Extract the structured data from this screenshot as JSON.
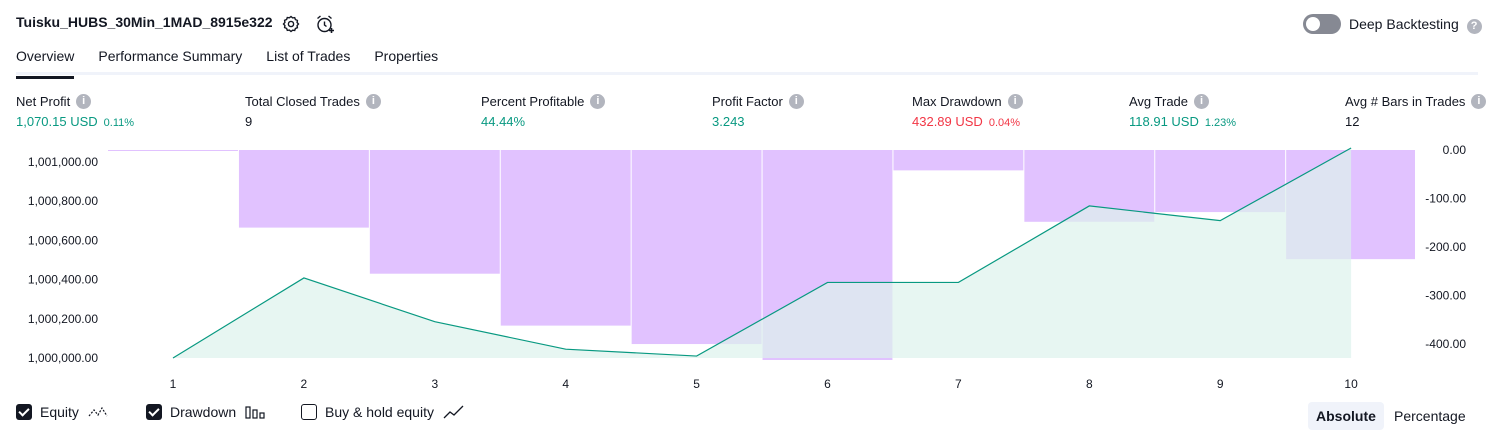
{
  "header": {
    "strategy_title": "Tuisku_HUBS_30Min_1MAD_8915e322",
    "deep_backtesting_label": "Deep Backtesting",
    "deep_backtesting_enabled": false
  },
  "tabs": [
    {
      "label": "Overview",
      "active": true
    },
    {
      "label": "Performance Summary",
      "active": false
    },
    {
      "label": "List of Trades",
      "active": false
    },
    {
      "label": "Properties",
      "active": false
    }
  ],
  "metrics": [
    {
      "label": "Net Profit",
      "value": "1,070.15 USD",
      "pct": "0.11%",
      "tone": "green"
    },
    {
      "label": "Total Closed Trades",
      "value": "9",
      "pct": "",
      "tone": "dark"
    },
    {
      "label": "Percent Profitable",
      "value": "44.44%",
      "pct": "",
      "tone": "green"
    },
    {
      "label": "Profit Factor",
      "value": "3.243",
      "pct": "",
      "tone": "green"
    },
    {
      "label": "Max Drawdown",
      "value": "432.89 USD",
      "pct": "0.04%",
      "tone": "red"
    },
    {
      "label": "Avg Trade",
      "value": "118.91 USD",
      "pct": "1.23%",
      "tone": "green"
    },
    {
      "label": "Avg # Bars in Trades",
      "value": "12",
      "pct": "",
      "tone": "dark"
    }
  ],
  "chart_data": {
    "type": "line",
    "x": [
      1,
      2,
      3,
      4,
      5,
      6,
      7,
      8,
      9,
      10
    ],
    "series": [
      {
        "name": "Equity",
        "axis": "left",
        "style": "line+area",
        "color": "#089981",
        "values": [
          1000000,
          1000408,
          1000185,
          1000045,
          1000010,
          1000385,
          1000385,
          1000775,
          1000700,
          1001070
        ]
      },
      {
        "name": "Drawdown",
        "axis": "right",
        "style": "bar",
        "color": "#d1a1ff",
        "values": [
          0,
          -160,
          -255,
          -362,
          -400,
          -432.89,
          -42,
          -148,
          -128,
          -225
        ]
      }
    ],
    "left_axis": {
      "ticks": [
        "1,001,000.00",
        "1,000,800.00",
        "1,000,600.00",
        "1,000,400.00",
        "1,000,200.00",
        "1,000,000.00"
      ],
      "ylim": [
        1000000,
        1001060
      ]
    },
    "right_axis": {
      "ticks": [
        "0.00",
        "-100.00",
        "-200.00",
        "-300.00",
        "-400.00"
      ],
      "ylim": [
        -432.89,
        0
      ]
    },
    "grid": false
  },
  "legend": {
    "equity": {
      "label": "Equity",
      "checked": true
    },
    "drawdown": {
      "label": "Drawdown",
      "checked": true
    },
    "buyhold": {
      "label": "Buy & hold equity",
      "checked": false
    }
  },
  "view_mode": {
    "absolute": "Absolute",
    "percentage": "Percentage",
    "selected": "Absolute"
  },
  "colors": {
    "profit": "#089981",
    "loss": "#f23645",
    "drawdown": "#d1a1ff",
    "equity_fill": "#ddf2ed"
  }
}
